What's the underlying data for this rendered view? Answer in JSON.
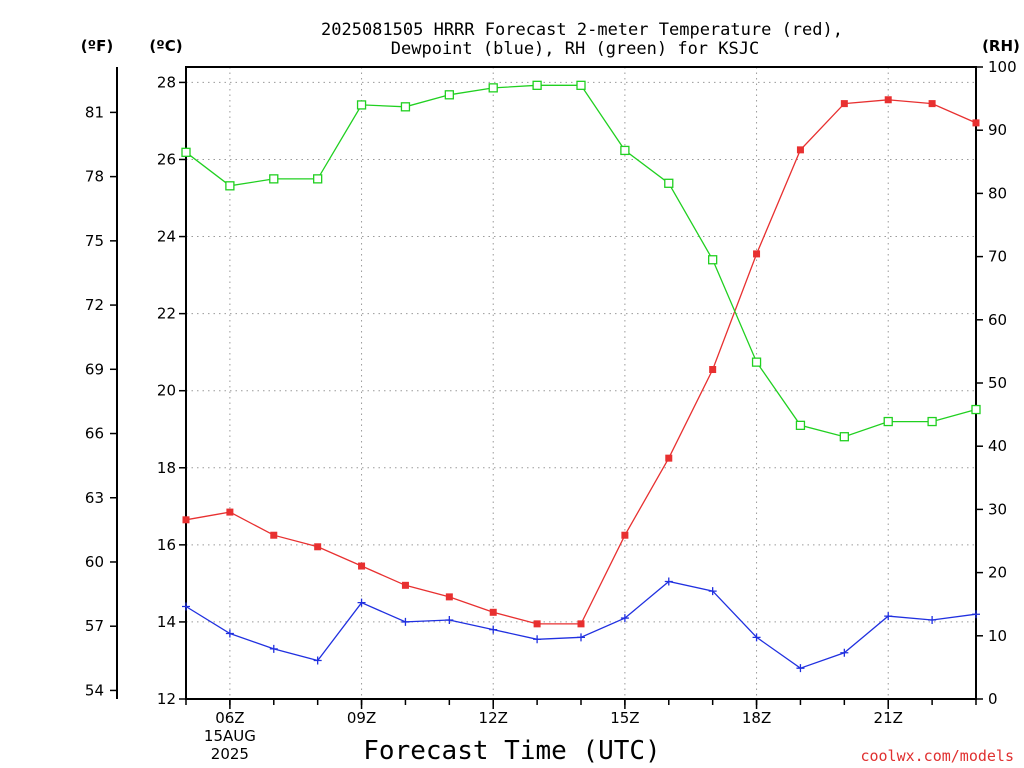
{
  "chart_data": {
    "type": "line",
    "title": "2025081505 HRRR Forecast 2-meter Temperature (red),",
    "subtitle": "Dewpoint (blue), RH (green) for KSJC",
    "xlabel": "Forecast Time (UTC)",
    "units": {
      "f": "(ºF)",
      "c": "(ºC)",
      "rh": "(RH)"
    },
    "credit": "coolwx.com/models",
    "x_hours": [
      5,
      6,
      7,
      8,
      9,
      10,
      11,
      12,
      13,
      14,
      15,
      16,
      17,
      18,
      19,
      20,
      21,
      22,
      23
    ],
    "xlim": [
      5,
      23
    ],
    "x_ticks": [
      {
        "hour": 6,
        "label": "06Z",
        "date": "15AUG",
        "year": "2025"
      },
      {
        "hour": 9,
        "label": "09Z"
      },
      {
        "hour": 12,
        "label": "12Z"
      },
      {
        "hour": 15,
        "label": "15Z"
      },
      {
        "hour": 18,
        "label": "18Z"
      },
      {
        "hour": 21,
        "label": "21Z"
      }
    ],
    "ylim_c": [
      12,
      28.4
    ],
    "y_ticks_c": [
      "12",
      "14",
      "16",
      "18",
      "20",
      "22",
      "24",
      "26",
      "28"
    ],
    "y_ticks_f": [
      "54",
      "57",
      "60",
      "63",
      "66",
      "69",
      "72",
      "75",
      "78",
      "81"
    ],
    "ylim_rh": [
      0,
      100
    ],
    "y_ticks_rh": [
      "0",
      "10",
      "20",
      "30",
      "40",
      "50",
      "60",
      "70",
      "80",
      "90",
      "100"
    ],
    "grid": true,
    "series": [
      {
        "name": "Temperature",
        "axis": "c",
        "color": "#e83030",
        "marker": "filled-square",
        "values": [
          16.65,
          16.85,
          16.25,
          15.95,
          15.45,
          14.95,
          14.65,
          14.25,
          13.95,
          13.95,
          16.25,
          18.25,
          20.55,
          23.55,
          26.25,
          27.45,
          27.55,
          27.45,
          26.95
        ]
      },
      {
        "name": "Dewpoint",
        "axis": "c",
        "color": "#2030e0",
        "marker": "plus",
        "values": [
          14.4,
          13.7,
          13.3,
          13.0,
          14.5,
          14.0,
          14.05,
          13.8,
          13.55,
          13.6,
          14.1,
          15.05,
          14.8,
          13.6,
          12.8,
          13.2,
          14.15,
          14.05,
          14.2
        ]
      },
      {
        "name": "RH",
        "axis": "rh",
        "color": "#20d020",
        "marker": "open-square",
        "values": [
          86.5,
          81.2,
          82.3,
          82.3,
          94.0,
          93.7,
          95.6,
          96.7,
          97.1,
          97.1,
          86.8,
          81.6,
          69.5,
          53.3,
          43.3,
          41.5,
          43.9,
          43.9,
          45.8
        ]
      }
    ]
  }
}
